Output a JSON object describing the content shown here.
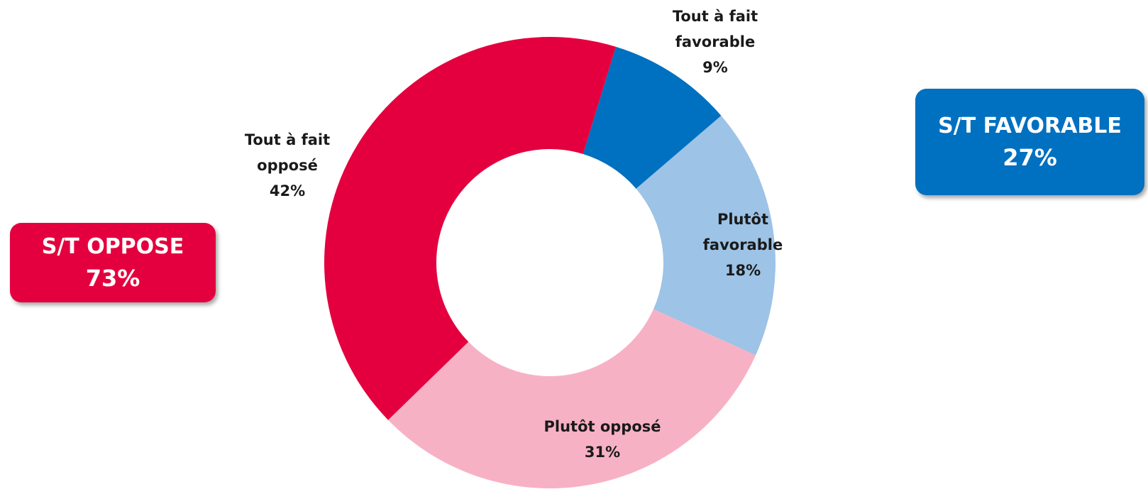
{
  "chart_data": {
    "type": "pie",
    "donut": true,
    "slices": [
      {
        "label": [
          "Tout à fait",
          "favorable"
        ],
        "value": 9,
        "value_label": "9%",
        "color": "#0070C0"
      },
      {
        "label": [
          "Plutôt",
          "favorable"
        ],
        "value": 18,
        "value_label": "18%",
        "color": "#9DC3E6"
      },
      {
        "label": [
          "Plutôt opposé"
        ],
        "value": 31,
        "value_label": "31%",
        "color": "#F7B1C5"
      },
      {
        "label": [
          "Tout à fait",
          "opposé"
        ],
        "value": 42,
        "value_label": "42%",
        "color": "#E4003E"
      }
    ]
  },
  "summary": {
    "oppose": {
      "title": "S/T OPPOSE",
      "value": "73%",
      "color": "#E4003E"
    },
    "favorable": {
      "title": "S/T FAVORABLE",
      "value": "27%",
      "color": "#0070C0"
    }
  }
}
